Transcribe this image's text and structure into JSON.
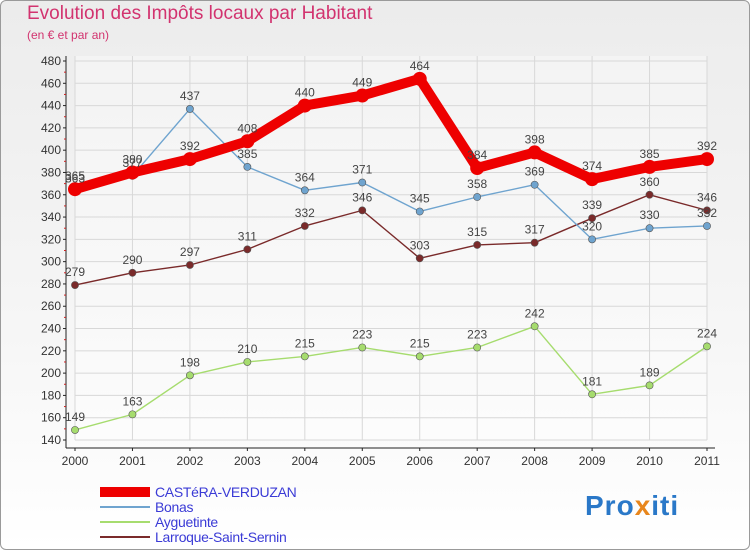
{
  "title": "Evolution des Impôts locaux par Habitant",
  "subtitle": "(en € et par an)",
  "logo": {
    "prefix": "Pro",
    "x": "x",
    "suffix": "iti"
  },
  "chart_data": {
    "type": "line",
    "x": [
      "2000",
      "2001",
      "2002",
      "2003",
      "2004",
      "2005",
      "2006",
      "2007",
      "2008",
      "2009",
      "2010",
      "2011"
    ],
    "ylim": [
      140,
      480
    ],
    "yticks": [
      140,
      160,
      180,
      200,
      220,
      240,
      260,
      280,
      300,
      320,
      340,
      360,
      380,
      400,
      420,
      440,
      460,
      480
    ],
    "grid": true,
    "legend_position": "bottom-left",
    "series": [
      {
        "name": "CASTéRA-VERDUZAN",
        "color": "#ee0000",
        "width": 10,
        "marker": 7,
        "values": [
          365,
          380,
          392,
          408,
          440,
          449,
          464,
          384,
          398,
          374,
          385,
          392
        ]
      },
      {
        "name": "Bonas",
        "color": "#6fa4cf",
        "width": 1.4,
        "marker": 3.6,
        "values": [
          363,
          377,
          437,
          385,
          364,
          371,
          345,
          358,
          369,
          320,
          330,
          332
        ]
      },
      {
        "name": "Ayguetinte",
        "color": "#a6dc6e",
        "width": 1.4,
        "marker": 3.6,
        "values": [
          149,
          163,
          198,
          210,
          215,
          223,
          215,
          223,
          242,
          181,
          189,
          224
        ]
      },
      {
        "name": "Larroque-Saint-Sernin",
        "color": "#7a2a2a",
        "width": 1.4,
        "marker": 3.6,
        "values": [
          279,
          290,
          297,
          311,
          332,
          346,
          303,
          315,
          317,
          339,
          360,
          346
        ]
      }
    ],
    "data_labels": [
      [
        "365",
        "380",
        "392",
        "408",
        "440",
        "449",
        "464",
        "384",
        "398",
        "374",
        "385",
        "392"
      ],
      [
        "363",
        "377",
        "437",
        "385",
        "364",
        "371",
        "345",
        "358",
        "369",
        "320",
        "330",
        "332"
      ],
      [
        "149",
        "163",
        "198",
        "210",
        "215",
        "223",
        "215",
        "223",
        "242",
        "181",
        "189",
        "224"
      ],
      [
        "279",
        "290",
        "297",
        "311",
        "332",
        "346",
        "303",
        "315",
        "317",
        "339",
        "360",
        "346"
      ]
    ]
  }
}
